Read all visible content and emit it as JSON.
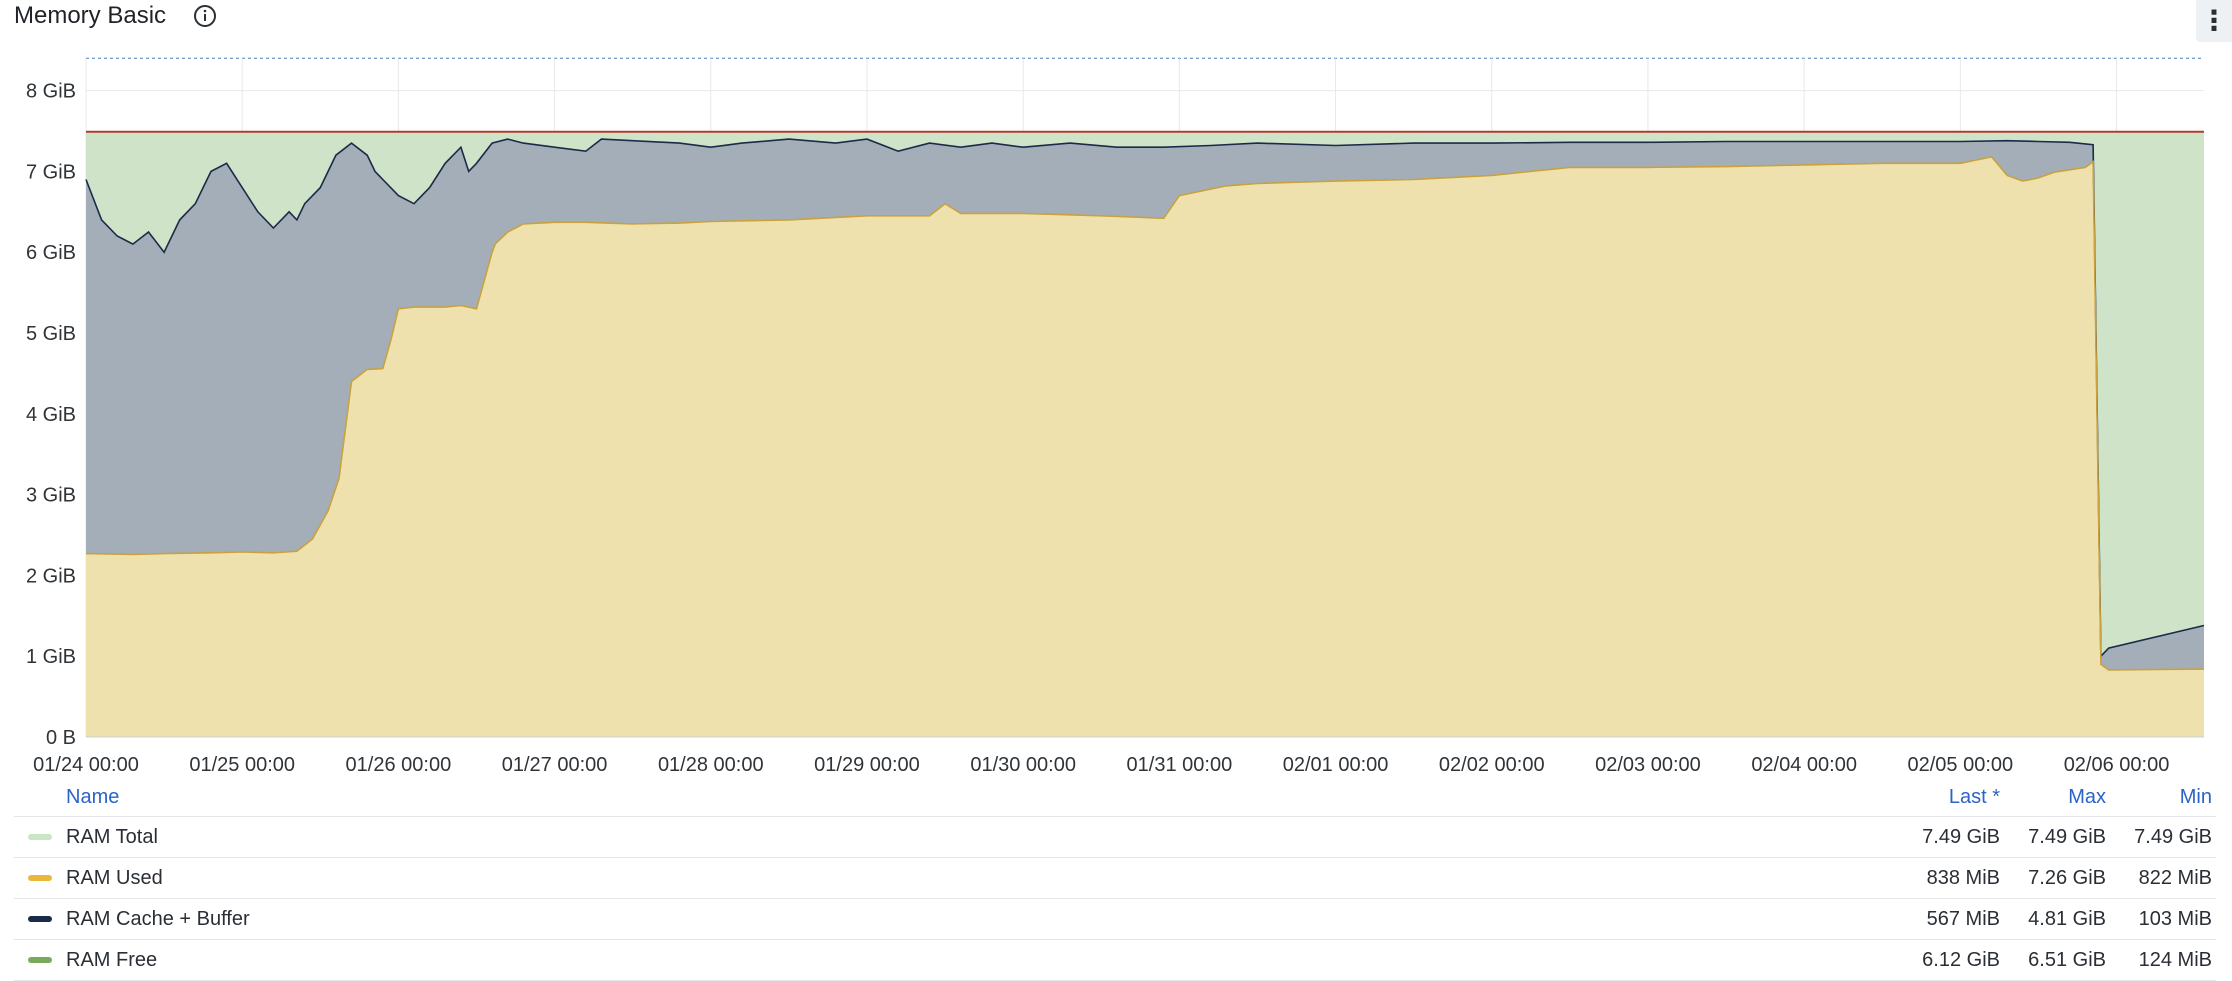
{
  "panel": {
    "title": "Memory Basic",
    "info_icon": "info-circle-icon",
    "menu_icon": "vertical-ellipsis-icon",
    "menu_glyph": "⋮"
  },
  "legend": {
    "headers": {
      "name": "Name",
      "last": "Last *",
      "max": "Max",
      "min": "Min"
    },
    "rows": [
      {
        "name": "RAM Total",
        "color": "#c8e6c2",
        "last": "7.49 GiB",
        "max": "7.49 GiB",
        "min": "7.49 GiB"
      },
      {
        "name": "RAM Used",
        "color": "#e8b93d",
        "last": "838 MiB",
        "max": "7.26 GiB",
        "min": "822 MiB"
      },
      {
        "name": "RAM Cache + Buffer",
        "color": "#1b2a48",
        "last": "567 MiB",
        "max": "4.81 GiB",
        "min": "103 MiB"
      },
      {
        "name": "RAM Free",
        "color": "#7aa85c",
        "last": "6.12 GiB",
        "max": "6.51 GiB",
        "min": "124 MiB"
      }
    ]
  },
  "chart_data": {
    "type": "area",
    "title": "Memory Basic",
    "y_ticks": [
      "0 B",
      "1 GiB",
      "2 GiB",
      "3 GiB",
      "4 GiB",
      "5 GiB",
      "6 GiB",
      "7 GiB",
      "8 GiB"
    ],
    "y_range_gib": [
      0,
      8.4
    ],
    "x_ticks": [
      "01/24 00:00",
      "01/25 00:00",
      "01/26 00:00",
      "01/27 00:00",
      "01/28 00:00",
      "01/29 00:00",
      "01/30 00:00",
      "01/31 00:00",
      "02/01 00:00",
      "02/02 00:00",
      "02/03 00:00",
      "02/04 00:00",
      "02/05 00:00",
      "02/06 00:00"
    ],
    "x_range_days": [
      0,
      13.56
    ],
    "grid": true,
    "legend_position": "bottom",
    "colors": {
      "total_fill": "#cfe3c9",
      "total_line": "#b33a2e",
      "cache_fill": "#a4aeb9",
      "cache_line": "#1b2a48",
      "used_fill": "#efe1ae",
      "used_line": "#c9a23d"
    },
    "series": [
      {
        "name": "RAM Total",
        "x": [
          0,
          13.56
        ],
        "values": [
          7.49,
          7.49
        ]
      },
      {
        "name": "RAM Used",
        "x": [
          0,
          0.3,
          0.5,
          0.8,
          1.0,
          1.2,
          1.35,
          1.45,
          1.55,
          1.62,
          1.7,
          1.8,
          1.9,
          1.95,
          2.0,
          2.1,
          2.2,
          2.3,
          2.4,
          2.5,
          2.6,
          2.62,
          2.7,
          2.8,
          3.0,
          3.2,
          3.5,
          3.8,
          4.0,
          4.5,
          5.0,
          5.4,
          5.5,
          5.6,
          6.0,
          6.5,
          6.9,
          7.0,
          7.3,
          7.5,
          8.0,
          8.5,
          9.0,
          9.5,
          10.0,
          10.5,
          11.0,
          11.5,
          12.0,
          12.2,
          12.3,
          12.4,
          12.5,
          12.6,
          12.7,
          12.8,
          12.85,
          12.9,
          12.95,
          13.56
        ],
        "values": [
          2.27,
          2.26,
          2.27,
          2.28,
          2.29,
          2.28,
          2.3,
          2.45,
          2.8,
          3.2,
          4.4,
          4.55,
          4.56,
          4.9,
          5.3,
          5.32,
          5.32,
          5.32,
          5.34,
          5.3,
          6.0,
          6.1,
          6.25,
          6.35,
          6.37,
          6.37,
          6.35,
          6.36,
          6.38,
          6.4,
          6.45,
          6.45,
          6.6,
          6.48,
          6.48,
          6.45,
          6.42,
          6.7,
          6.82,
          6.85,
          6.88,
          6.9,
          6.95,
          7.05,
          7.05,
          7.06,
          7.08,
          7.1,
          7.1,
          7.18,
          6.95,
          6.88,
          6.92,
          6.99,
          7.02,
          7.05,
          7.12,
          0.9,
          0.83,
          0.84
        ]
      },
      {
        "name": "RAM Cache + Buffer",
        "x": [
          0,
          0.1,
          0.2,
          0.3,
          0.4,
          0.5,
          0.6,
          0.7,
          0.8,
          0.9,
          1.0,
          1.1,
          1.2,
          1.3,
          1.35,
          1.4,
          1.5,
          1.55,
          1.6,
          1.7,
          1.8,
          1.85,
          1.9,
          2.0,
          2.1,
          2.2,
          2.3,
          2.4,
          2.45,
          2.5,
          2.6,
          2.7,
          2.8,
          3.0,
          3.2,
          3.3,
          3.5,
          3.8,
          4.0,
          4.2,
          4.5,
          4.8,
          5.0,
          5.2,
          5.4,
          5.6,
          5.8,
          6.0,
          6.3,
          6.6,
          6.9,
          7.2,
          7.5,
          8.0,
          8.5,
          9.0,
          9.5,
          10.0,
          10.5,
          11.0,
          11.5,
          12.0,
          12.3,
          12.5,
          12.7,
          12.85,
          12.9,
          12.95,
          13.56
        ],
        "values": [
          6.9,
          6.4,
          6.2,
          6.1,
          6.25,
          6.0,
          6.4,
          6.6,
          7.0,
          7.1,
          6.8,
          6.5,
          6.3,
          6.5,
          6.4,
          6.6,
          6.8,
          7.0,
          7.2,
          7.35,
          7.2,
          7.0,
          6.9,
          6.7,
          6.6,
          6.8,
          7.1,
          7.3,
          7.0,
          7.1,
          7.35,
          7.4,
          7.35,
          7.3,
          7.25,
          7.4,
          7.38,
          7.35,
          7.3,
          7.35,
          7.4,
          7.35,
          7.4,
          7.25,
          7.35,
          7.3,
          7.35,
          7.3,
          7.35,
          7.3,
          7.3,
          7.32,
          7.35,
          7.32,
          7.35,
          7.35,
          7.36,
          7.36,
          7.37,
          7.37,
          7.37,
          7.37,
          7.38,
          7.37,
          7.36,
          7.33,
          1.0,
          1.1,
          1.38
        ]
      }
    ]
  }
}
